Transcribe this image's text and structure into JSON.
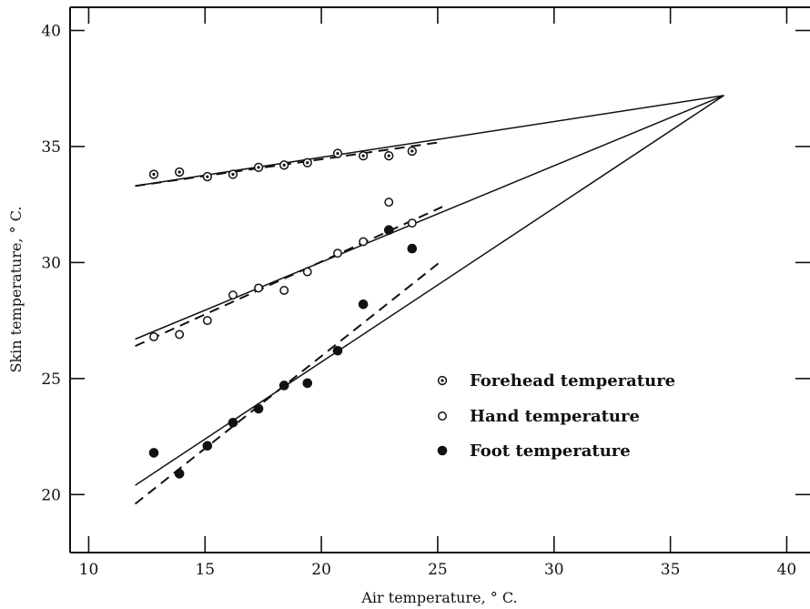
{
  "chart_data": {
    "type": "scatter",
    "title": "",
    "xlabel": "Air temperature, ° C.",
    "ylabel": "Skin temperature, ° C.",
    "xlim": [
      9.2,
      41
    ],
    "ylim": [
      17.5,
      41
    ],
    "x_ticks": [
      10,
      15,
      20,
      25,
      30,
      35,
      40
    ],
    "y_ticks": [
      20,
      25,
      30,
      35,
      40
    ],
    "x_tick_labels": [
      "10",
      "15",
      "20",
      "25",
      "30",
      "35",
      "40"
    ],
    "y_tick_labels": [
      "20",
      "25",
      "30",
      "35",
      "40"
    ],
    "grid": false,
    "legend_position": "lower-right",
    "series": [
      {
        "name": "Forehead temperature",
        "marker": "dotted-circle",
        "points": [
          [
            12.8,
            33.8
          ],
          [
            13.9,
            33.9
          ],
          [
            15.1,
            33.7
          ],
          [
            16.2,
            33.8
          ],
          [
            17.3,
            34.1
          ],
          [
            18.4,
            34.2
          ],
          [
            19.4,
            34.3
          ],
          [
            20.7,
            34.7
          ],
          [
            21.8,
            34.6
          ],
          [
            22.9,
            34.6
          ],
          [
            23.9,
            34.8
          ]
        ],
        "solid_fit": [
          [
            12.0,
            33.3
          ],
          [
            37.3,
            37.2
          ]
        ],
        "dashed_fit": [
          [
            12.0,
            33.3
          ],
          [
            25.2,
            35.2
          ]
        ]
      },
      {
        "name": "Hand temperature",
        "marker": "open-circle",
        "points": [
          [
            12.8,
            26.8
          ],
          [
            13.9,
            26.9
          ],
          [
            15.1,
            27.5
          ],
          [
            16.2,
            28.6
          ],
          [
            17.3,
            28.9
          ],
          [
            18.4,
            28.8
          ],
          [
            19.4,
            29.6
          ],
          [
            20.7,
            30.4
          ],
          [
            21.8,
            30.9
          ],
          [
            22.9,
            32.6
          ],
          [
            23.9,
            31.7
          ]
        ],
        "solid_fit": [
          [
            12.0,
            26.7
          ],
          [
            37.3,
            37.2
          ]
        ],
        "dashed_fit": [
          [
            12.0,
            26.4
          ],
          [
            25.2,
            32.4
          ]
        ]
      },
      {
        "name": "Foot temperature",
        "marker": "filled-circle",
        "points": [
          [
            12.8,
            21.8
          ],
          [
            13.9,
            20.9
          ],
          [
            15.1,
            22.1
          ],
          [
            16.2,
            23.1
          ],
          [
            17.3,
            23.7
          ],
          [
            18.4,
            24.7
          ],
          [
            19.4,
            24.8
          ],
          [
            20.7,
            26.2
          ],
          [
            21.8,
            28.2
          ],
          [
            22.9,
            31.4
          ],
          [
            23.9,
            30.6
          ]
        ],
        "solid_fit": [
          [
            12.0,
            20.4
          ],
          [
            37.3,
            37.2
          ]
        ],
        "dashed_fit": [
          [
            12.0,
            19.6
          ],
          [
            25.2,
            30.1
          ]
        ]
      }
    ]
  }
}
